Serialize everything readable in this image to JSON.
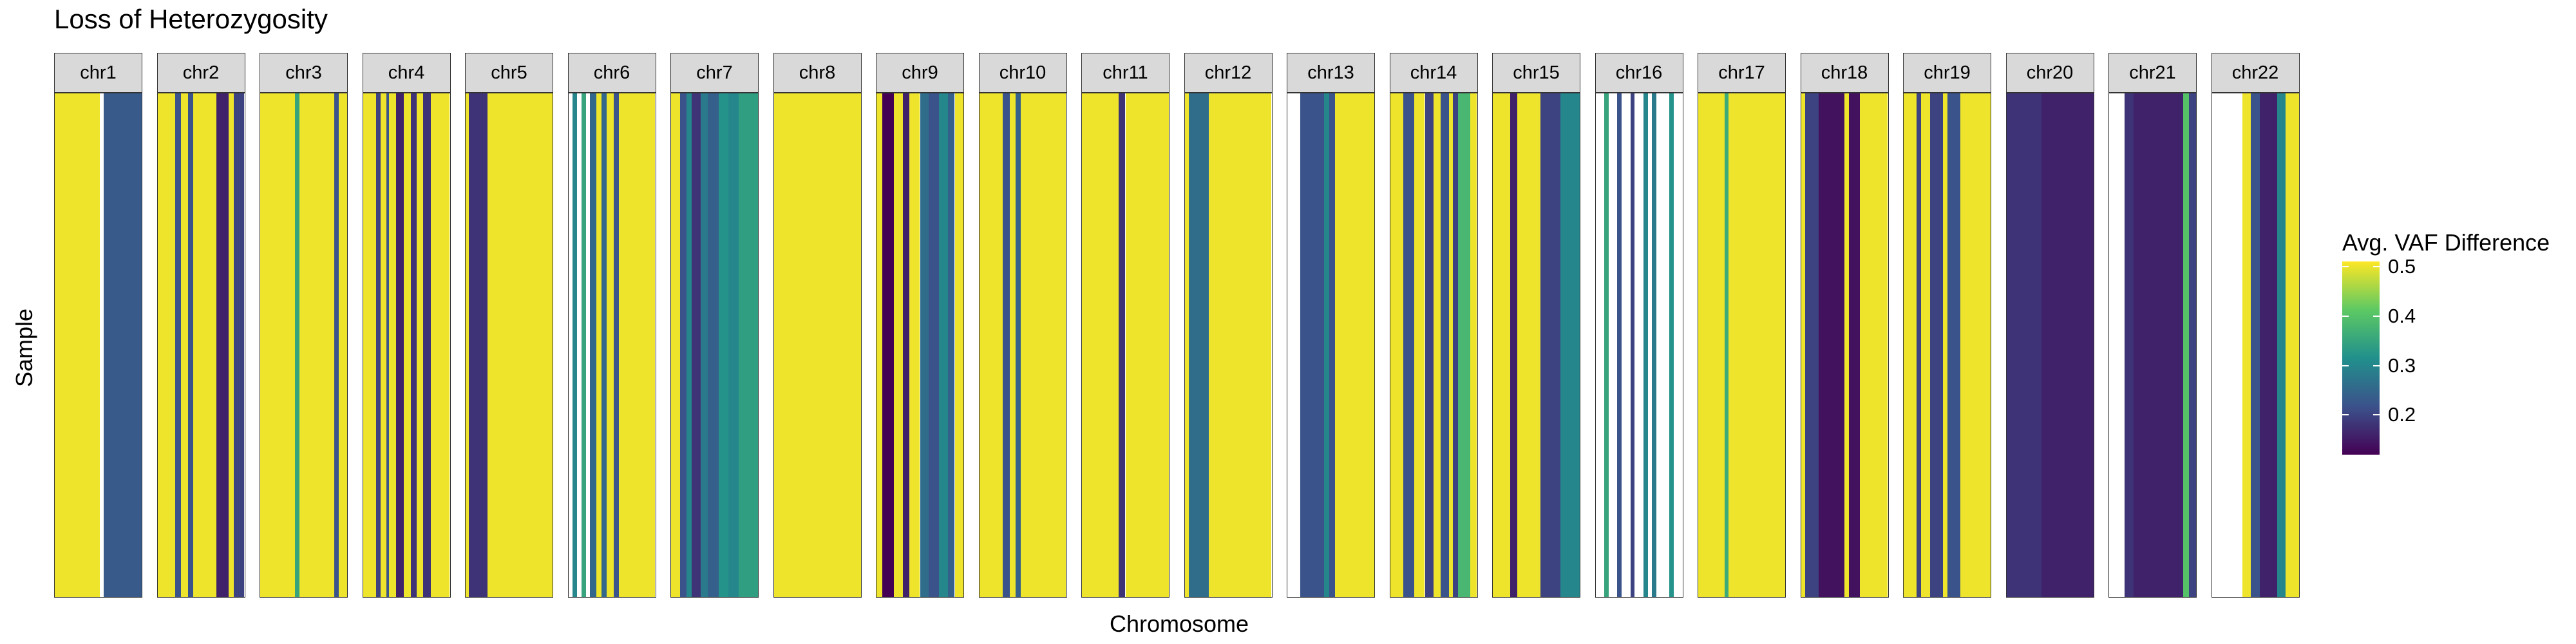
{
  "chart_data": {
    "type": "heatmap",
    "title": "Loss of Heterozygosity",
    "xlabel": "Chromosome",
    "ylabel": "Sample",
    "legend": {
      "title": "Avg. VAF Difference",
      "position": "right",
      "ticks": [
        "0.5",
        "0.4",
        "0.3",
        "0.2"
      ],
      "range": [
        0.12,
        0.51
      ],
      "colors": [
        "#440154",
        "#3b528b",
        "#21908c",
        "#5dc963",
        "#fde725"
      ]
    },
    "panels": [
      {
        "label": "chr1",
        "segments": [
          [
            0,
            0.52,
            0.5
          ],
          [
            0.56,
            1,
            0.23
          ]
        ]
      },
      {
        "label": "chr2",
        "segments": [
          [
            0,
            0.2,
            0.5
          ],
          [
            0.2,
            0.27,
            0.22
          ],
          [
            0.27,
            0.35,
            0.5
          ],
          [
            0.35,
            0.41,
            0.22
          ],
          [
            0.41,
            0.68,
            0.5
          ],
          [
            0.68,
            0.82,
            0.16
          ],
          [
            0.82,
            0.88,
            0.5
          ],
          [
            0.88,
            1,
            0.2
          ]
        ]
      },
      {
        "label": "chr3",
        "segments": [
          [
            0,
            0.4,
            0.5
          ],
          [
            0.4,
            0.45,
            0.35
          ],
          [
            0.45,
            0.85,
            0.5
          ],
          [
            0.85,
            0.9,
            0.22
          ],
          [
            0.9,
            1,
            0.5
          ]
        ]
      },
      {
        "label": "chr4",
        "segments": [
          [
            0,
            0.15,
            0.5
          ],
          [
            0.15,
            0.2,
            0.2
          ],
          [
            0.2,
            0.27,
            0.5
          ],
          [
            0.27,
            0.3,
            0.22
          ],
          [
            0.3,
            0.38,
            0.5
          ],
          [
            0.38,
            0.47,
            0.16
          ],
          [
            0.47,
            0.55,
            0.5
          ],
          [
            0.55,
            0.62,
            0.18
          ],
          [
            0.62,
            0.69,
            0.5
          ],
          [
            0.69,
            0.78,
            0.18
          ],
          [
            0.78,
            1,
            0.5
          ]
        ]
      },
      {
        "label": "chr5",
        "segments": [
          [
            0,
            0.04,
            0.5
          ],
          [
            0.04,
            0.25,
            0.18
          ],
          [
            0.25,
            1,
            0.5
          ]
        ]
      },
      {
        "label": "chr6",
        "segments": [
          [
            0.05,
            0.1,
            0.3
          ],
          [
            0.15,
            0.2,
            0.35
          ],
          [
            0.25,
            0.32,
            0.25
          ],
          [
            0.32,
            0.38,
            0.5
          ],
          [
            0.38,
            0.44,
            0.25
          ],
          [
            0.44,
            0.52,
            0.5
          ],
          [
            0.52,
            0.58,
            0.22
          ],
          [
            0.58,
            1,
            0.5
          ]
        ]
      },
      {
        "label": "chr7",
        "segments": [
          [
            0,
            0.1,
            0.5
          ],
          [
            0.1,
            0.18,
            0.22
          ],
          [
            0.18,
            0.24,
            0.3
          ],
          [
            0.24,
            0.34,
            0.18
          ],
          [
            0.34,
            0.42,
            0.28
          ],
          [
            0.42,
            0.55,
            0.24
          ],
          [
            0.55,
            0.66,
            0.32
          ],
          [
            0.66,
            0.78,
            0.3
          ],
          [
            0.78,
            1,
            0.34
          ]
        ]
      },
      {
        "label": "chr8",
        "segments": [
          [
            0,
            1,
            0.5
          ]
        ]
      },
      {
        "label": "chr9",
        "segments": [
          [
            0,
            0.07,
            0.5
          ],
          [
            0.07,
            0.2,
            0.12
          ],
          [
            0.2,
            0.3,
            0.5
          ],
          [
            0.3,
            0.38,
            0.16
          ],
          [
            0.38,
            0.5,
            0.5
          ],
          [
            0.5,
            0.6,
            0.26
          ],
          [
            0.6,
            0.72,
            0.22
          ],
          [
            0.72,
            0.82,
            0.3
          ],
          [
            0.82,
            0.9,
            0.24
          ],
          [
            0.9,
            1,
            0.5
          ]
        ]
      },
      {
        "label": "chr10",
        "segments": [
          [
            0,
            0.27,
            0.5
          ],
          [
            0.27,
            0.35,
            0.22
          ],
          [
            0.35,
            0.42,
            0.5
          ],
          [
            0.42,
            0.48,
            0.24
          ],
          [
            0.48,
            1,
            0.5
          ]
        ]
      },
      {
        "label": "chr11",
        "segments": [
          [
            0,
            0.42,
            0.5
          ],
          [
            0.42,
            0.5,
            0.18
          ],
          [
            0.5,
            1,
            0.5
          ]
        ]
      },
      {
        "label": "chr12",
        "segments": [
          [
            0,
            0.05,
            0.5
          ],
          [
            0.05,
            0.28,
            0.26
          ],
          [
            0.28,
            1,
            0.5
          ]
        ]
      },
      {
        "label": "chr13",
        "segments": [
          [
            0.15,
            0.42,
            0.22
          ],
          [
            0.42,
            0.48,
            0.3
          ],
          [
            0.48,
            0.55,
            0.22
          ],
          [
            0.55,
            1,
            0.5
          ]
        ]
      },
      {
        "label": "chr14",
        "segments": [
          [
            0,
            0.15,
            0.5
          ],
          [
            0.15,
            0.28,
            0.22
          ],
          [
            0.28,
            0.4,
            0.5
          ],
          [
            0.4,
            0.5,
            0.2
          ],
          [
            0.5,
            0.58,
            0.5
          ],
          [
            0.58,
            0.68,
            0.22
          ],
          [
            0.68,
            0.72,
            0.5
          ],
          [
            0.72,
            0.78,
            0.2
          ],
          [
            0.78,
            0.92,
            0.38
          ],
          [
            0.92,
            1,
            0.5
          ]
        ]
      },
      {
        "label": "chr15",
        "segments": [
          [
            0,
            0.2,
            0.5
          ],
          [
            0.2,
            0.28,
            0.16
          ],
          [
            0.28,
            0.55,
            0.5
          ],
          [
            0.55,
            0.78,
            0.2
          ],
          [
            0.78,
            1,
            0.3
          ]
        ]
      },
      {
        "label": "chr16",
        "segments": [
          [
            0.1,
            0.15,
            0.35
          ],
          [
            0.25,
            0.3,
            0.22
          ],
          [
            0.4,
            0.45,
            0.2
          ],
          [
            0.55,
            0.6,
            0.3
          ],
          [
            0.65,
            0.7,
            0.28
          ],
          [
            0.85,
            0.9,
            0.32
          ]
        ]
      },
      {
        "label": "chr17",
        "segments": [
          [
            0,
            0.3,
            0.5
          ],
          [
            0.3,
            0.35,
            0.36
          ],
          [
            0.35,
            1,
            0.5
          ]
        ]
      },
      {
        "label": "chr18",
        "segments": [
          [
            0,
            0.05,
            0.5
          ],
          [
            0.05,
            0.2,
            0.2
          ],
          [
            0.2,
            0.5,
            0.14
          ],
          [
            0.5,
            0.55,
            0.5
          ],
          [
            0.55,
            0.68,
            0.14
          ],
          [
            0.68,
            1,
            0.5
          ]
        ]
      },
      {
        "label": "chr19",
        "segments": [
          [
            0,
            0.15,
            0.5
          ],
          [
            0.15,
            0.2,
            0.2
          ],
          [
            0.2,
            0.3,
            0.5
          ],
          [
            0.3,
            0.45,
            0.2
          ],
          [
            0.45,
            0.5,
            0.5
          ],
          [
            0.5,
            0.65,
            0.22
          ],
          [
            0.65,
            1,
            0.5
          ]
        ]
      },
      {
        "label": "chr20",
        "segments": [
          [
            0,
            0.4,
            0.18
          ],
          [
            0.4,
            0.5,
            0.16
          ],
          [
            0.5,
            1,
            0.16
          ]
        ]
      },
      {
        "label": "chr21",
        "segments": [
          [
            0.18,
            0.28,
            0.18
          ],
          [
            0.28,
            0.85,
            0.16
          ],
          [
            0.85,
            0.92,
            0.4
          ],
          [
            0.92,
            1,
            0.2
          ]
        ]
      },
      {
        "label": "chr22",
        "segments": [
          [
            0.35,
            0.45,
            0.5
          ],
          [
            0.45,
            0.55,
            0.22
          ],
          [
            0.55,
            0.75,
            0.16
          ],
          [
            0.75,
            0.85,
            0.3
          ],
          [
            0.85,
            1,
            0.5
          ]
        ]
      }
    ]
  }
}
